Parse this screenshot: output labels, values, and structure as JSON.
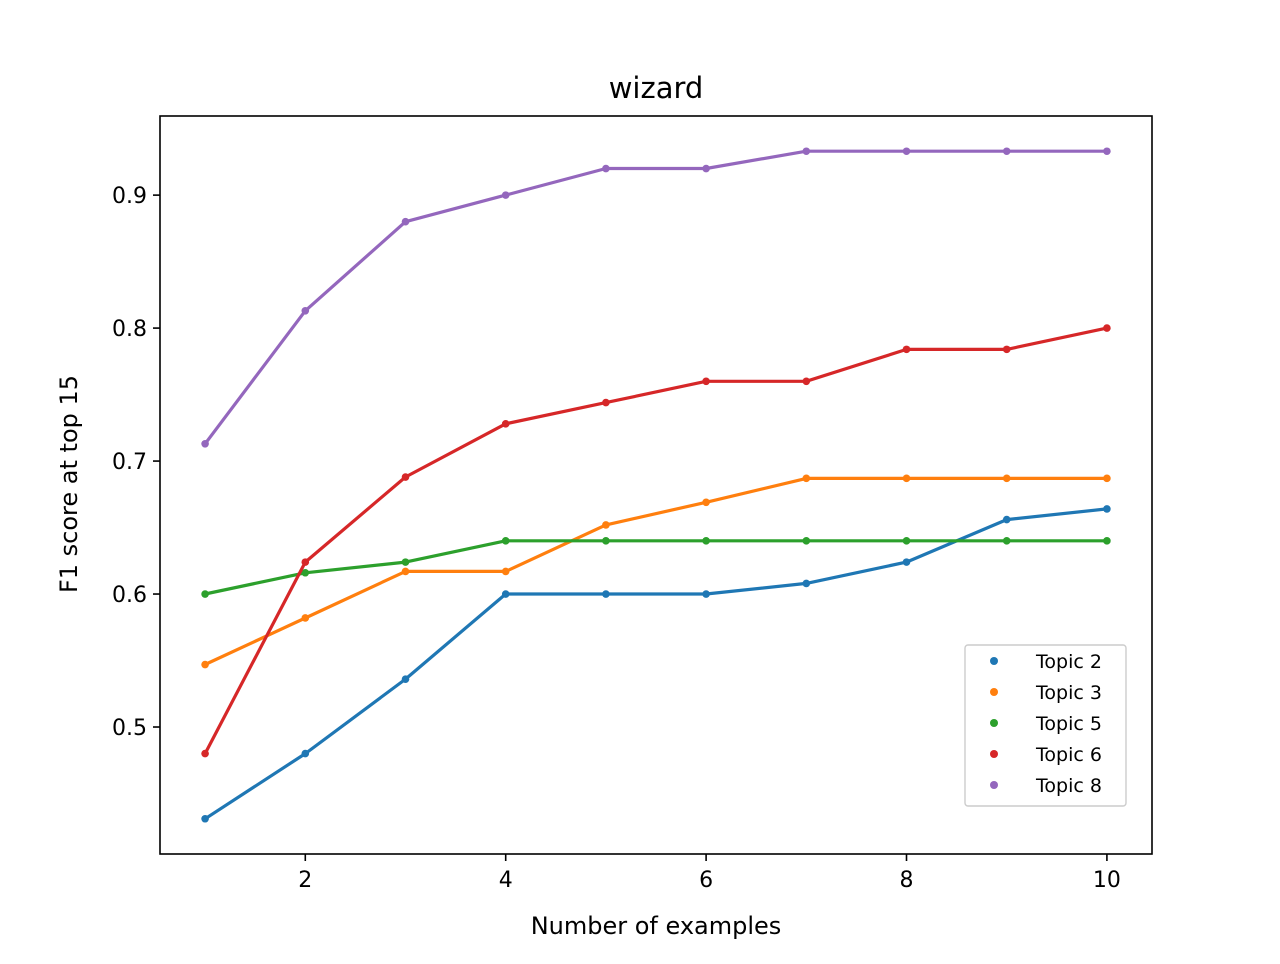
{
  "chart_data": {
    "type": "line",
    "title": "wizard",
    "xlabel": "Number of examples",
    "ylabel": "F1 score at top 15",
    "xlim": [
      0.55,
      10.45
    ],
    "ylim": [
      0.4045,
      0.9595
    ],
    "xticks": [
      2,
      4,
      6,
      8,
      10
    ],
    "yticks": [
      0.5,
      0.6,
      0.7,
      0.8,
      0.9
    ],
    "grid": false,
    "legend_position": "lower-right",
    "x": [
      1,
      2,
      3,
      4,
      5,
      6,
      7,
      8,
      9,
      10
    ],
    "series": [
      {
        "name": "Topic 2",
        "color": "#1f77b4",
        "values": [
          0.431,
          0.48,
          0.536,
          0.6,
          0.6,
          0.6,
          0.608,
          0.624,
          0.656,
          0.664
        ]
      },
      {
        "name": "Topic 3",
        "color": "#ff7f0e",
        "values": [
          0.547,
          0.582,
          0.617,
          0.617,
          0.652,
          0.669,
          0.687,
          0.687,
          0.687,
          0.687
        ]
      },
      {
        "name": "Topic 5",
        "color": "#2ca02c",
        "values": [
          0.6,
          0.616,
          0.624,
          0.64,
          0.64,
          0.64,
          0.64,
          0.64,
          0.64,
          0.64
        ]
      },
      {
        "name": "Topic 6",
        "color": "#d62728",
        "values": [
          0.48,
          0.624,
          0.688,
          0.728,
          0.744,
          0.76,
          0.76,
          0.784,
          0.784,
          0.8
        ]
      },
      {
        "name": "Topic 8",
        "color": "#9467bd",
        "values": [
          0.713,
          0.813,
          0.88,
          0.9,
          0.92,
          0.92,
          0.933,
          0.933,
          0.933,
          0.933
        ]
      }
    ]
  }
}
